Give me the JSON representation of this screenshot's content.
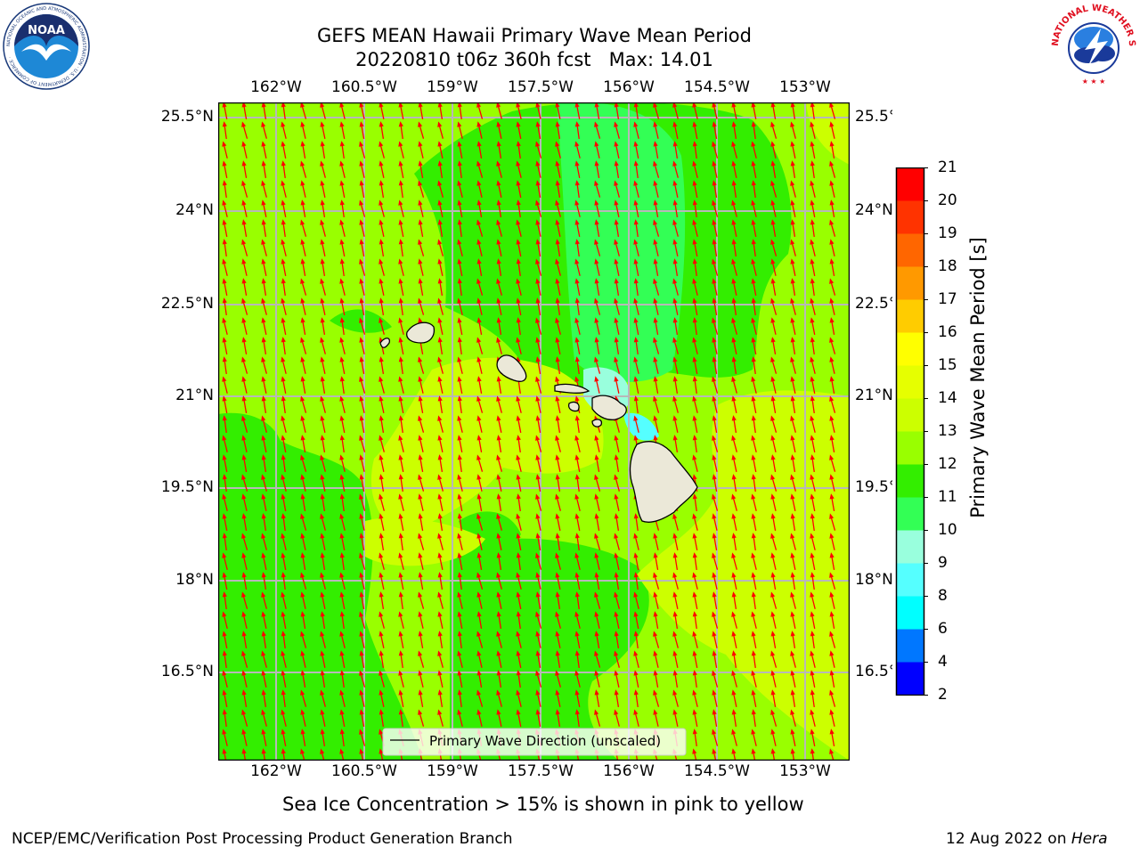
{
  "title": {
    "line1": "GEFS MEAN Hawaii Primary Wave Mean Period",
    "line2": "20220810 t06z 360h fcst   Max: 14.01"
  },
  "map": {
    "lon_ticks": [
      "162°W",
      "160.5°W",
      "159°W",
      "157.5°W",
      "156°W",
      "154.5°W",
      "153°W"
    ],
    "lat_ticks": [
      "25.5°N",
      "24°N",
      "22.5°N",
      "21°N",
      "19.5°N",
      "18°N",
      "16.5°N"
    ],
    "legend_label": "Primary Wave Direction (unscaled)",
    "arrow_color": "#ff0000",
    "land_color": "#ebe8d8"
  },
  "colorbar": {
    "label": "Primary Wave Mean Period [s]",
    "ticks": [
      "21",
      "20",
      "19",
      "18",
      "17",
      "16",
      "15",
      "14",
      "13",
      "12",
      "11",
      "10",
      "9",
      "8",
      "6",
      "4",
      "2"
    ],
    "colors": [
      "#ff0000",
      "#ff3300",
      "#ff6600",
      "#ff9900",
      "#ffcc00",
      "#ffff00",
      "#e6ff00",
      "#ccff00",
      "#99ff00",
      "#33ee00",
      "#33ff55",
      "#99ffdd",
      "#55ffff",
      "#00ffff",
      "#0077ff",
      "#0000ff"
    ]
  },
  "notes": {
    "sea_ice": "Sea Ice Concentration > 15% is shown in pink to yellow",
    "branch": "NCEP/EMC/Verification Post Processing Product Generation Branch",
    "date": "12 Aug 2022 on ",
    "machine": "Hera"
  },
  "logos": {
    "noaa_text": "NOAA",
    "noaa_ring": "NATIONAL OCEANIC AND ATMOSPHERIC ADMINISTRATION · U.S. DEPARTMENT OF COMMERCE ·",
    "nws_ring": "NATIONAL WEATHER SERVICE"
  }
}
